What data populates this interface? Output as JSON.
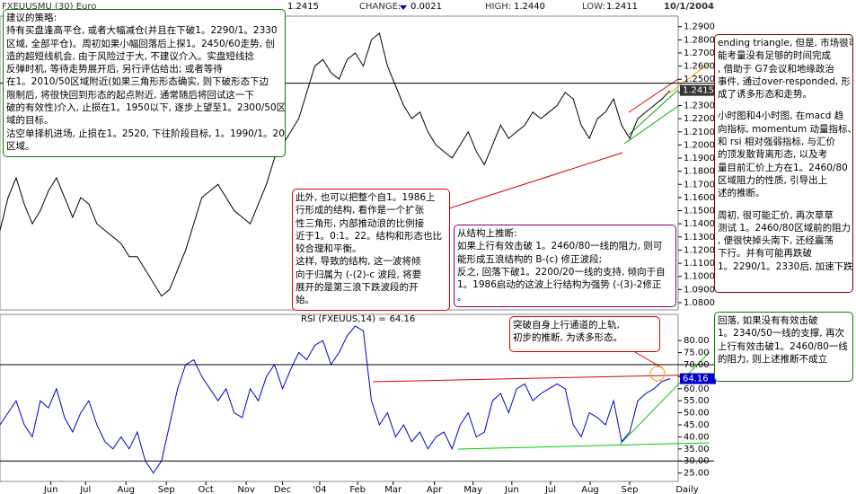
{
  "chart_data": [
    {
      "type": "line",
      "header": {
        "symbol": "FXEUUSMU (30)  Euro",
        "last": 1.2415,
        "change_label": "CHANGE:",
        "change": 0.0021,
        "high_label": "HIGH:",
        "high": {
          "value": 1.244,
          "label": "1.2440"
        },
        "low_label": "LOW:",
        "low": 1.2411,
        "date": "10/1/2004"
      },
      "x": [
        0,
        1,
        2,
        3,
        4,
        5,
        6,
        7,
        8,
        9,
        10,
        11,
        12,
        13,
        14,
        15,
        16,
        17,
        18,
        19,
        20,
        21,
        22,
        23,
        24,
        25,
        26,
        27,
        28,
        29,
        30,
        31,
        32,
        33,
        34,
        35,
        36,
        37,
        38,
        39,
        40,
        41,
        42,
        43,
        44,
        45,
        46,
        47,
        48,
        49,
        50,
        51,
        52,
        53,
        54,
        55,
        56,
        57,
        58,
        59,
        60,
        61,
        62,
        63,
        64,
        65,
        66,
        67,
        68,
        69,
        70,
        71,
        72,
        73,
        74,
        75,
        76,
        77,
        78,
        79,
        80,
        81,
        82,
        83
      ],
      "series": [
        {
          "color": "#000000",
          "values": [
            1.135,
            1.16,
            1.175,
            1.155,
            1.14,
            1.15,
            1.165,
            1.175,
            1.16,
            1.145,
            1.16,
            1.155,
            1.14,
            1.135,
            1.13,
            1.125,
            1.115,
            1.115,
            1.105,
            1.095,
            1.085,
            1.09,
            1.105,
            1.12,
            1.14,
            1.16,
            1.165,
            1.17,
            1.16,
            1.15,
            1.145,
            1.14,
            1.155,
            1.17,
            1.19,
            1.2,
            1.21,
            1.22,
            1.24,
            1.26,
            1.265,
            1.255,
            1.25,
            1.265,
            1.27,
            1.26,
            1.28,
            1.285,
            1.26,
            1.245,
            1.23,
            1.22,
            1.225,
            1.21,
            1.2,
            1.195,
            1.19,
            1.2,
            1.21,
            1.195,
            1.185,
            1.2,
            1.215,
            1.205,
            1.21,
            1.215,
            1.225,
            1.22,
            1.225,
            1.23,
            1.24,
            1.235,
            1.215,
            1.205,
            1.22,
            1.225,
            1.235,
            1.215,
            1.205,
            1.22,
            1.225,
            1.23,
            1.235,
            1.2415
          ]
        }
      ],
      "xlim": [
        0,
        84
      ],
      "ylim": [
        1.0745,
        1.298
      ],
      "yticks": [
        {
          "value": 1.29,
          "label": "1.2900"
        },
        {
          "value": 1.28,
          "label": "1.2800"
        },
        {
          "value": 1.27,
          "label": "1.2700"
        },
        {
          "value": 1.26,
          "label": "1.2600"
        },
        {
          "value": 1.25,
          "label": "1.2500"
        },
        {
          "value": 1.24,
          "label": "1.2400"
        },
        {
          "value": 1.23,
          "label": "1.2300"
        },
        {
          "value": 1.22,
          "label": "1.2200"
        },
        {
          "value": 1.21,
          "label": "1.2100"
        },
        {
          "value": 1.2,
          "label": "1.2000"
        },
        {
          "value": 1.19,
          "label": "1.1900"
        },
        {
          "value": 1.18,
          "label": "1.1800"
        },
        {
          "value": 1.17,
          "label": "1.1700"
        },
        {
          "value": 1.16,
          "label": "1.1600"
        },
        {
          "value": 1.15,
          "label": "1.1500"
        },
        {
          "value": 1.14,
          "label": "1.1400"
        },
        {
          "value": 1.13,
          "label": "1.1300"
        },
        {
          "value": 1.12,
          "label": "1.1200"
        },
        {
          "value": 1.11,
          "label": "1.1100"
        },
        {
          "value": 1.1,
          "label": "1.1000"
        },
        {
          "value": 1.09,
          "label": "1.0900"
        },
        {
          "value": 1.08,
          "label": "1.0800"
        }
      ],
      "ref_lines": [
        1.247
      ],
      "annotations": [
        {
          "color": "#008000",
          "paragraphs": [
            [
              "建议的策略:",
              "持有买盘逢高平仓, 或者大幅减仓(并且在下破1。2290/1。2330",
              "区域, 全部平仓)。周初如果小幅回落后上探1。2450/60走势, 创",
              "造的超短线机会, 由于风险过于大, 不建议介入。实盘短线捻",
              "反弹时机, 等待走势展开后, 另行评估给出; 或者等待",
              "在1。2010/50区域附近(如果三角形形态确实, 则下破形态下边",
              "限制后, 将很快回到形态的起点附近, 通常随后将回试这一下",
              "破的有效性)介入, 止损在1。1950以下, 逐步上望至1。2300/50区",
              "域的目标。",
              "沽空单择机进场, 止损在1。2520, 下往阶段目标, 1。1990/1。2030",
              "区域。"
            ]
          ]
        },
        {
          "color": "#dd0000",
          "paragraphs": [
            [
              "此外, 也可以把整个自1。1986上",
              "行形成的结构, 看作是一个扩张",
              "性三角形, 内部推动浪的比例接",
              "近于1。0:1。22。结构和形态也比",
              "较合理和平衡。",
              "这样, 导致的结构, 这一波将倾",
              "向于归属为 (-(2)-c 波段, 将要",
              "展开的是第三浪下跌波段的开",
              "始。"
            ]
          ]
        },
        {
          "color": "#800080",
          "paragraphs": [
            [
              "从结构上推断:",
              "如果上行有效击破 1。2460/80一线的阻力, 则可",
              "能形成五浪结构的 B-(c) 修正波段;",
              "反之, 回落下破1。2200/20一线的支持, 倾向于自",
              "1。1986启动的这波上行结构为强势 (-(3)-2修正",
              "。"
            ]
          ]
        },
        {
          "color": "#800000",
          "paragraphs": [
            [
              "ending triangle, 但是, 市场很可",
              "能考量没有足够的时间完成",
              ", 借助于 G7会议和地缘政治",
              "事件, 通过over-responded, 形",
              "成了诱多形态和走势。"
            ],
            [
              "小时图和4小时图, 在macd 趋",
              "向指标, momentum 动量指标、",
              "和 rsi 相对强弱指标, 与汇价",
              "的顶发散背离形态, 以及考",
              "量目前汇价上方在1。2460/80",
              "区域阻力的性质, 引导出上",
              "述的推断。"
            ],
            [
              "周初, 很可能汇价, 再次草草",
              "测试 1。2460/80区域前的阻力",
              ", 便很快掉头南下, 还经震荡",
              "下行。并有可能再跌破",
              "1。2290/1。2330后, 加速下跌。"
            ]
          ]
        },
        {
          "color": "#008000",
          "paragraphs": [
            [
              "回落, 如果没有有效击破",
              "1。2340/50一线的支撑, 再次",
              "上行有效击破1。2460/80一线",
              "的阻力, 则上述推断不成立"
            ]
          ]
        }
      ]
    },
    {
      "type": "line",
      "label": "RSI (FXEUUS,14) =",
      "x": [
        0,
        1,
        2,
        3,
        4,
        5,
        6,
        7,
        8,
        9,
        10,
        11,
        12,
        13,
        14,
        15,
        16,
        17,
        18,
        19,
        20,
        21,
        22,
        23,
        24,
        25,
        26,
        27,
        28,
        29,
        30,
        31,
        32,
        33,
        34,
        35,
        36,
        37,
        38,
        39,
        40,
        41,
        42,
        43,
        44,
        45,
        46,
        47,
        48,
        49,
        50,
        51,
        52,
        53,
        54,
        55,
        56,
        57,
        58,
        59,
        60,
        61,
        62,
        63,
        64,
        65,
        66,
        67,
        68,
        69,
        70,
        71,
        72,
        73,
        74,
        75,
        76,
        77,
        78,
        79,
        80,
        81,
        82,
        83
      ],
      "series": [
        {
          "color": "#0000cc",
          "values": [
            45,
            50,
            55,
            45,
            40,
            55,
            52,
            60,
            48,
            42,
            50,
            55,
            45,
            38,
            35,
            40,
            35,
            42,
            30,
            25,
            30,
            45,
            60,
            70,
            72,
            65,
            60,
            55,
            60,
            50,
            48,
            60,
            55,
            65,
            70,
            60,
            68,
            75,
            72,
            78,
            80,
            70,
            75,
            82,
            86,
            84,
            55,
            45,
            50,
            40,
            45,
            38,
            42,
            35,
            40,
            42,
            35,
            45,
            50,
            40,
            42,
            55,
            58,
            50,
            60,
            62,
            55,
            58,
            60,
            62,
            60,
            45,
            40,
            50,
            48,
            45,
            55,
            38,
            42,
            55,
            58,
            60,
            63,
            64.16
          ]
        }
      ],
      "xlim": [
        0,
        84
      ],
      "ylim": [
        20,
        89
      ],
      "yticks": [
        {
          "value": 80,
          "label": "80.00"
        },
        {
          "value": 75,
          "label": "75.00"
        },
        {
          "value": 70,
          "label": "70.00"
        },
        {
          "value": 65,
          "label": "65.00"
        },
        {
          "value": 60,
          "label": "60.00"
        },
        {
          "value": 55,
          "label": "55.00"
        },
        {
          "value": 50,
          "label": "50.00"
        },
        {
          "value": 45,
          "label": "45.00"
        },
        {
          "value": 40,
          "label": "40.00"
        },
        {
          "value": 35,
          "label": "35.00"
        },
        {
          "value": 30,
          "label": "30.00"
        },
        {
          "value": 25,
          "label": "25.00"
        }
      ],
      "ref_lines": [
        70,
        30
      ],
      "xticks": [
        {
          "value": 6.3,
          "label": "Jun"
        },
        {
          "value": 10.6,
          "label": "Jul"
        },
        {
          "value": 15.6,
          "label": "Aug"
        },
        {
          "value": 20.6,
          "label": "Sep"
        },
        {
          "value": 25.5,
          "label": "Oct"
        },
        {
          "value": 30.5,
          "label": "Nov"
        },
        {
          "value": 35,
          "label": "Dec"
        },
        {
          "value": 39.6,
          "label": "'04"
        },
        {
          "value": 44.3,
          "label": "Feb"
        },
        {
          "value": 48.7,
          "label": "Mar"
        },
        {
          "value": 53.8,
          "label": "Apr"
        },
        {
          "value": 58.6,
          "label": "May"
        },
        {
          "value": 63.4,
          "label": "Jun"
        },
        {
          "value": 68.2,
          "label": "Jul"
        },
        {
          "value": 73.1,
          "label": "Aug"
        },
        {
          "value": 78,
          "label": "Sep"
        }
      ],
      "period": "Daily",
      "annotations": [
        {
          "color": "#dd0000",
          "paragraphs": [
            [
              "突破自身上行通道的上轨,",
              "初步的推断, 为诱多形态。"
            ]
          ]
        }
      ]
    }
  ]
}
